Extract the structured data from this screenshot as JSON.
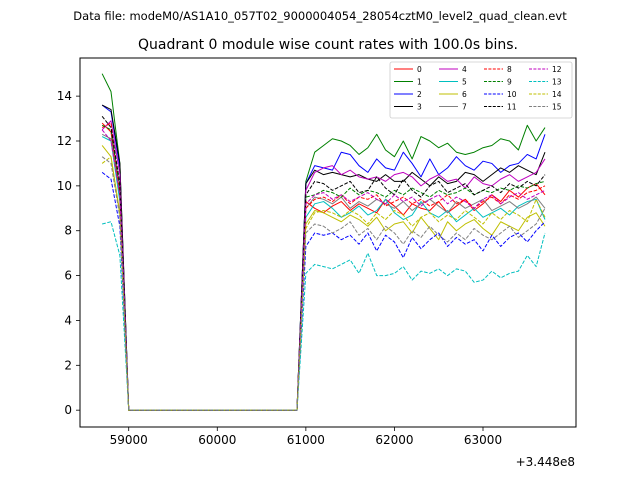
{
  "figure": {
    "suptitle": "Data file: modeM0/AS1A10_057T02_9000004054_28054cztM0_level2_quad_clean.evt"
  },
  "chart_data": {
    "type": "line",
    "title": "Quadrant 0 module wise count rates with 100.0s bins.",
    "xlabel": "",
    "ylabel": "",
    "offset_label": "+3.448e8",
    "xlim": [
      58450,
      64050
    ],
    "ylim": [
      -0.75,
      15.7
    ],
    "xticks": [
      59000,
      60000,
      61000,
      62000,
      63000
    ],
    "xtick_labels": [
      "59000",
      "60000",
      "61000",
      "62000",
      "63000"
    ],
    "yticks": [
      0,
      2,
      4,
      6,
      8,
      10,
      12,
      14
    ],
    "ytick_labels": [
      "0",
      "2",
      "4",
      "6",
      "8",
      "10",
      "12",
      "14"
    ],
    "grid": false,
    "legend_placement": "top-right",
    "legend_columns": 4,
    "x_start": 58700,
    "x_step": 100,
    "gap_end": 60900,
    "series": [
      {
        "name": "0",
        "color": "#ff0000",
        "dash": "solid",
        "start": [
          12.8,
          12.4,
          9.5
        ],
        "values": [
          9.3,
          9.0,
          8.8,
          9.1,
          9.3,
          8.9,
          9.2,
          9.0,
          8.8,
          9.4,
          9.1,
          8.7,
          9.2,
          9.0,
          8.9,
          9.3,
          8.8,
          9.1,
          9.4,
          8.9,
          9.2,
          9.6,
          9.3,
          9.8,
          9.5,
          9.9,
          10.1,
          9.6
        ]
      },
      {
        "name": "1",
        "color": "#008000",
        "dash": "solid",
        "start": [
          15.0,
          14.2,
          11.0
        ],
        "values": [
          10.2,
          11.5,
          11.8,
          12.1,
          12.0,
          11.8,
          11.4,
          11.7,
          12.3,
          11.6,
          11.3,
          12.0,
          11.2,
          12.2,
          12.0,
          11.7,
          11.9,
          11.5,
          11.4,
          11.5,
          11.7,
          11.8,
          12.1,
          12.0,
          11.6,
          12.7,
          12.0,
          12.6
        ]
      },
      {
        "name": "2",
        "color": "#0000ff",
        "dash": "solid",
        "start": [
          13.6,
          13.3,
          10.8
        ],
        "values": [
          10.1,
          10.9,
          10.8,
          10.7,
          11.5,
          11.4,
          10.9,
          10.6,
          11.2,
          10.8,
          10.7,
          11.5,
          11.0,
          10.4,
          11.2,
          10.5,
          10.8,
          11.3,
          10.9,
          10.7,
          11.1,
          11.0,
          10.6,
          10.9,
          11.0,
          11.4,
          11.2,
          12.3
        ]
      },
      {
        "name": "3",
        "color": "#000000",
        "dash": "solid",
        "start": [
          13.6,
          13.4,
          11.0
        ],
        "values": [
          10.1,
          10.7,
          10.5,
          10.6,
          10.5,
          10.4,
          10.5,
          10.3,
          10.2,
          10.5,
          10.2,
          10.2,
          10.6,
          10.3,
          10.0,
          10.4,
          10.1,
          10.2,
          10.6,
          10.5,
          10.2,
          10.5,
          10.8,
          10.6,
          10.9,
          10.7,
          10.5,
          11.5
        ]
      },
      {
        "name": "4",
        "color": "#bf00bf",
        "dash": "solid",
        "start": [
          12.5,
          12.9,
          10.5
        ],
        "values": [
          9.8,
          10.6,
          10.8,
          10.9,
          10.5,
          10.7,
          10.4,
          10.3,
          10.4,
          10.2,
          10.5,
          10.6,
          10.4,
          10.0,
          10.3,
          10.5,
          10.2,
          10.3,
          9.9,
          10.4,
          10.1,
          10.0,
          10.3,
          10.5,
          10.2,
          10.4,
          10.6,
          11.2
        ]
      },
      {
        "name": "5",
        "color": "#00bfbf",
        "dash": "solid",
        "start": [
          12.2,
          12.0,
          9.3
        ],
        "values": [
          8.6,
          9.2,
          9.3,
          9.0,
          8.6,
          8.8,
          9.1,
          8.7,
          8.9,
          9.4,
          8.8,
          8.5,
          8.7,
          9.3,
          8.8,
          8.6,
          8.9,
          8.4,
          8.7,
          9.0,
          8.6,
          8.8,
          9.0,
          8.7,
          9.1,
          9.3,
          9.4,
          8.5
        ]
      },
      {
        "name": "6",
        "color": "#bfbf00",
        "dash": "solid",
        "start": [
          11.8,
          11.3,
          8.8
        ],
        "values": [
          8.3,
          8.9,
          8.8,
          8.6,
          8.4,
          8.7,
          8.5,
          8.2,
          8.6,
          8.0,
          8.3,
          8.4,
          7.9,
          8.6,
          8.1,
          7.6,
          8.4,
          8.0,
          8.3,
          8.5,
          8.1,
          7.8,
          8.4,
          8.2,
          8.0,
          8.6,
          8.8,
          8.2
        ]
      },
      {
        "name": "7",
        "color": "#808080",
        "dash": "solid",
        "start": [
          12.3,
          12.1,
          9.6
        ],
        "values": [
          9.0,
          9.5,
          9.4,
          9.2,
          9.5,
          9.0,
          9.3,
          9.1,
          9.4,
          9.2,
          9.0,
          9.3,
          8.9,
          9.2,
          9.4,
          9.1,
          8.8,
          9.3,
          9.0,
          9.2,
          9.4,
          8.9,
          9.1,
          9.3,
          9.0,
          9.2,
          9.5,
          9.0
        ]
      },
      {
        "name": "8",
        "color": "#ff0000",
        "dash": "dashed",
        "start": [
          12.6,
          12.8,
          9.6
        ],
        "values": [
          9.0,
          9.4,
          9.5,
          9.3,
          9.6,
          9.2,
          9.5,
          9.4,
          9.6,
          9.1,
          9.3,
          9.5,
          9.2,
          9.4,
          9.1,
          9.3,
          9.6,
          9.2,
          9.4,
          9.0,
          9.3,
          9.5,
          9.2,
          9.6,
          9.4,
          9.7,
          9.8,
          10.0
        ]
      },
      {
        "name": "9",
        "color": "#008000",
        "dash": "dashed",
        "start": [
          12.7,
          12.5,
          9.9
        ],
        "values": [
          9.5,
          9.6,
          9.8,
          9.7,
          9.5,
          9.9,
          9.6,
          9.8,
          9.7,
          9.5,
          9.8,
          9.6,
          9.9,
          9.7,
          9.5,
          9.8,
          9.6,
          9.7,
          9.9,
          9.6,
          9.8,
          9.7,
          9.9,
          9.8,
          10.0,
          9.9,
          10.1,
          10.2
        ]
      },
      {
        "name": "10",
        "color": "#0000ff",
        "dash": "dashed",
        "start": [
          10.6,
          10.3,
          8.2
        ],
        "values": [
          7.3,
          7.9,
          7.8,
          7.9,
          7.6,
          7.8,
          7.4,
          7.9,
          7.1,
          7.8,
          7.5,
          6.8,
          7.7,
          7.2,
          7.6,
          7.9,
          7.3,
          7.7,
          7.4,
          7.6,
          7.1,
          7.8,
          7.3,
          7.7,
          7.9,
          7.5,
          8.0,
          8.4
        ]
      },
      {
        "name": "11",
        "color": "#000000",
        "dash": "dashed",
        "start": [
          13.1,
          12.6,
          10.1
        ],
        "values": [
          9.6,
          10.2,
          10.1,
          9.8,
          10.0,
          10.2,
          9.7,
          9.8,
          10.4,
          9.9,
          9.6,
          10.3,
          9.8,
          9.5,
          10.0,
          10.2,
          9.7,
          9.9,
          10.1,
          9.6,
          9.8,
          10.0,
          9.7,
          10.1,
          9.9,
          10.2,
          10.0,
          10.5
        ]
      },
      {
        "name": "12",
        "color": "#bf00bf",
        "dash": "dashed",
        "start": [
          12.5,
          12.0,
          9.6
        ],
        "values": [
          9.2,
          9.6,
          9.7,
          9.4,
          9.6,
          9.3,
          9.5,
          9.7,
          9.4,
          9.2,
          9.6,
          9.3,
          9.5,
          9.1,
          9.4,
          9.6,
          9.2,
          9.5,
          9.3,
          9.0,
          9.4,
          9.6,
          9.2,
          9.5,
          9.7,
          9.4,
          9.6,
          9.8
        ]
      },
      {
        "name": "13",
        "color": "#00bfbf",
        "dash": "dashed",
        "start": [
          8.3,
          8.4,
          6.9
        ],
        "values": [
          6.1,
          6.5,
          6.4,
          6.3,
          6.5,
          6.7,
          6.1,
          7.0,
          6.0,
          6.0,
          6.1,
          6.4,
          5.8,
          6.2,
          6.1,
          6.3,
          6.0,
          6.3,
          6.2,
          5.7,
          5.8,
          6.2,
          5.9,
          6.1,
          6.2,
          6.9,
          6.4,
          7.9
        ]
      },
      {
        "name": "14",
        "color": "#bfbf00",
        "dash": "dashed",
        "start": [
          11.0,
          11.3,
          8.7
        ],
        "values": [
          8.1,
          8.8,
          8.9,
          8.8,
          8.6,
          8.9,
          8.7,
          8.3,
          8.8,
          8.5,
          8.9,
          8.7,
          8.2,
          8.6,
          8.8,
          8.4,
          8.7,
          8.5,
          8.9,
          8.6,
          8.3,
          8.8,
          8.5,
          8.9,
          8.7,
          8.4,
          9.4,
          8.6
        ]
      },
      {
        "name": "15",
        "color": "#808080",
        "dash": "dashed",
        "start": [
          11.3,
          11.0,
          8.6
        ],
        "values": [
          7.9,
          8.3,
          8.2,
          7.9,
          8.1,
          8.4,
          7.8,
          8.1,
          7.6,
          8.2,
          7.9,
          7.4,
          8.0,
          7.7,
          8.2,
          7.8,
          7.5,
          7.9,
          7.6,
          8.1,
          7.8,
          7.6,
          7.9,
          8.2,
          7.7,
          8.0,
          8.3,
          9.0
        ]
      }
    ]
  }
}
